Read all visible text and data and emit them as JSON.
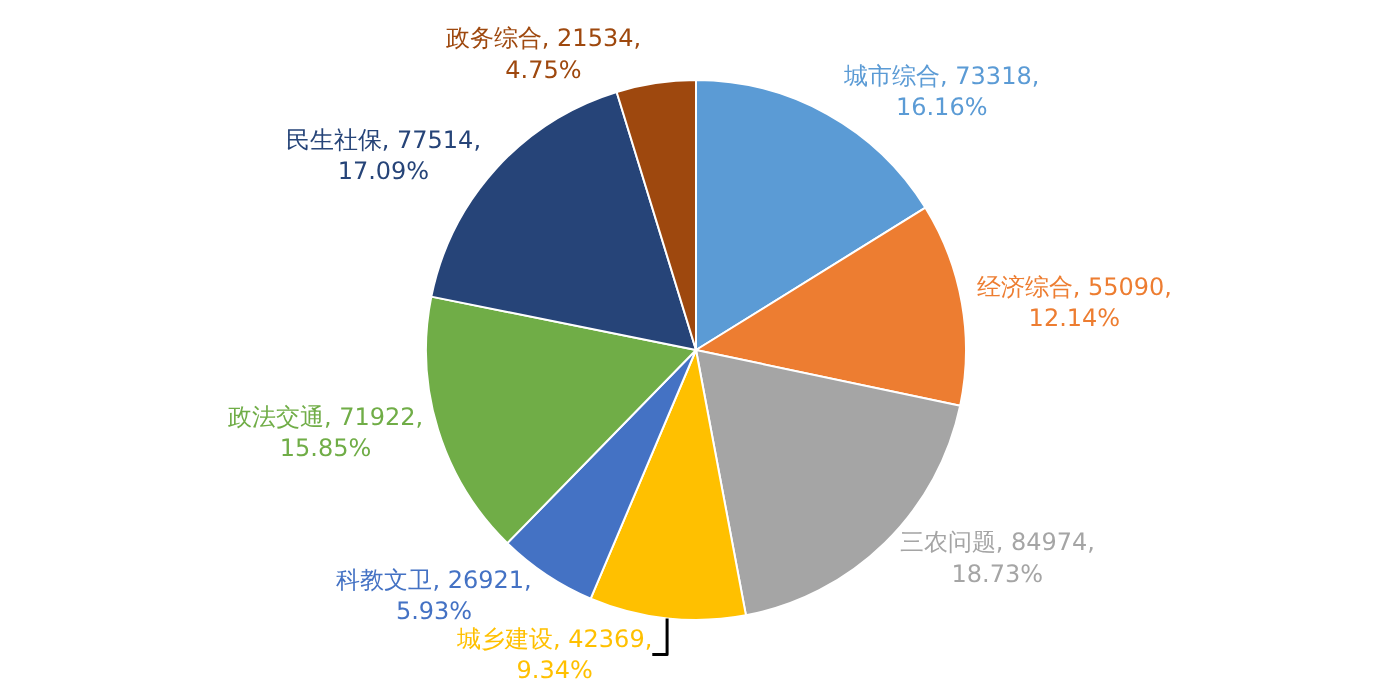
{
  "chart_data": {
    "type": "pie",
    "categories": [
      "城市综合",
      "经济综合",
      "三农问题",
      "城乡建设",
      "科教文卫",
      "政法交通",
      "民生社保",
      "政务综合"
    ],
    "values": [
      73318,
      55090,
      84974,
      42369,
      26921,
      71922,
      77514,
      21534
    ],
    "value_labels": [
      "73318,\n16.16%",
      "55090,\n12.14%",
      "84974,\n18.73%",
      "42369,\n9.34%",
      "26921,\n5.93%",
      "71922,\n15.85%",
      "77514,\n17.09%",
      "21534,\n4.75%"
    ],
    "colors": [
      "#5b9bd5",
      "#ed7d31",
      "#a5a5a5",
      "#ffc000",
      "#4472c4",
      "#70ad47",
      "#264478",
      "#9e480e"
    ],
    "legend": false
  }
}
